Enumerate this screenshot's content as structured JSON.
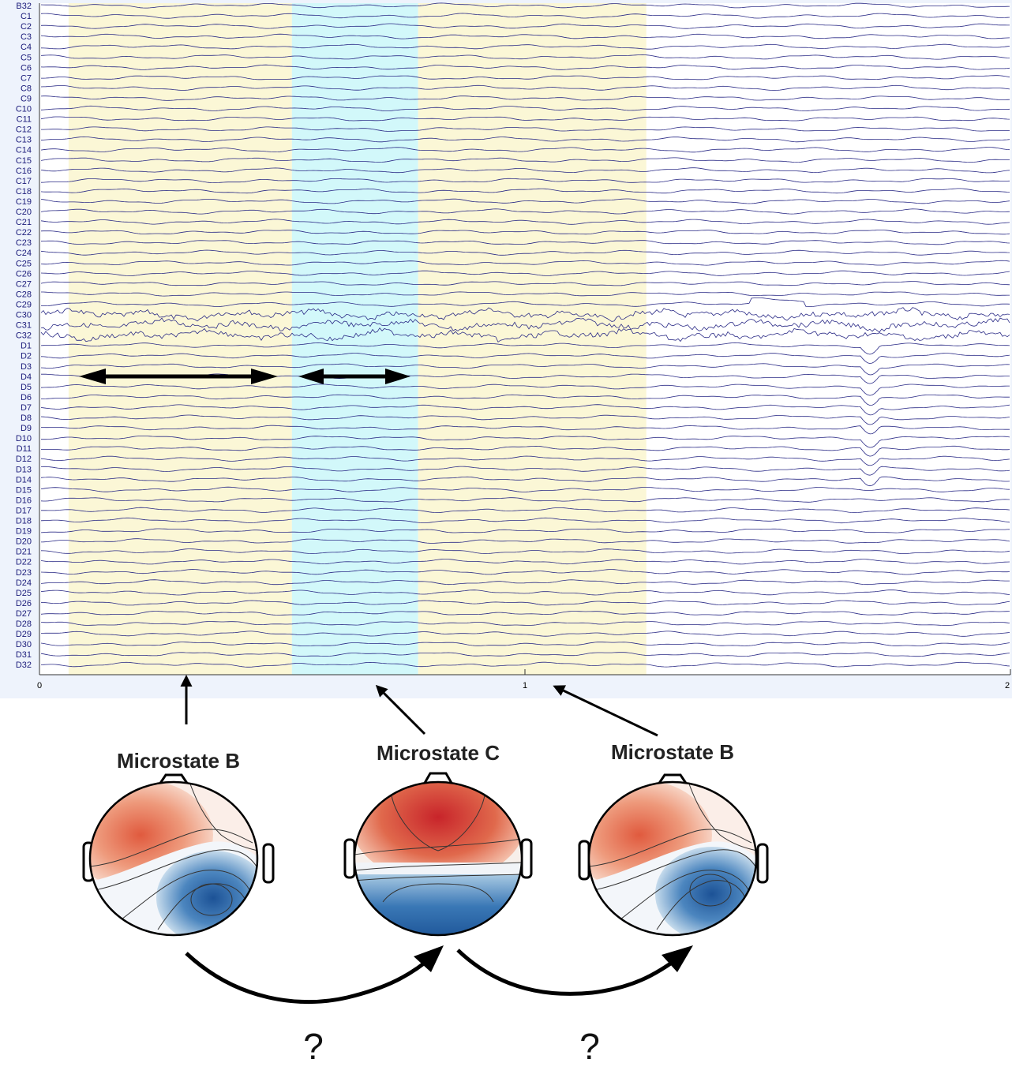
{
  "eeg": {
    "channels": [
      "B32",
      "C1",
      "C2",
      "C3",
      "C4",
      "C5",
      "C6",
      "C7",
      "C8",
      "C9",
      "C10",
      "C11",
      "C12",
      "C13",
      "C14",
      "C15",
      "C16",
      "C17",
      "C18",
      "C19",
      "C20",
      "C21",
      "C22",
      "C23",
      "C24",
      "C25",
      "C26",
      "C27",
      "C28",
      "C29",
      "C30",
      "C31",
      "C32",
      "D1",
      "D2",
      "D3",
      "D4",
      "D5",
      "D6",
      "D7",
      "D8",
      "D9",
      "D10",
      "D11",
      "D12",
      "D13",
      "D14",
      "D15",
      "D16",
      "D17",
      "D18",
      "D19",
      "D20",
      "D21",
      "D22",
      "D23",
      "D24",
      "D25",
      "D26",
      "D27",
      "D28",
      "D29",
      "D30",
      "D31",
      "D32"
    ],
    "x_ticks": [
      "0",
      "1",
      "2"
    ],
    "x_range": [
      0,
      2
    ],
    "segments": [
      {
        "state": "B",
        "start": 0.06,
        "end": 0.52,
        "color": "#fbf7d6"
      },
      {
        "state": "C",
        "start": 0.52,
        "end": 0.78,
        "color": "#d2f8fa"
      },
      {
        "state": "B",
        "start": 0.78,
        "end": 1.25,
        "color": "#fbf7d6"
      }
    ],
    "trace_color": "#2a2a86",
    "background_color": "#eef3fc"
  },
  "microstates": [
    {
      "title": "Microstate B",
      "type": "B"
    },
    {
      "title": "Microstate C",
      "type": "C"
    },
    {
      "title": "Microstate B",
      "type": "B"
    }
  ],
  "transitions": [
    {
      "label": "?"
    },
    {
      "label": "?"
    }
  ],
  "colors": {
    "positive": "#d6402e",
    "negative": "#1f5fa3",
    "arrow": "#000000"
  }
}
